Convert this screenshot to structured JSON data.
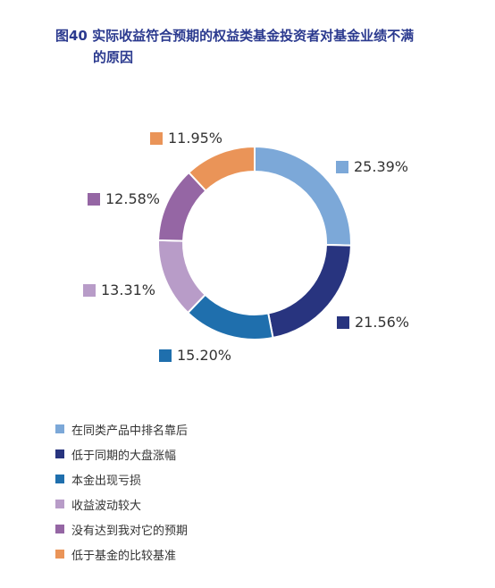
{
  "title": {
    "line1": "图40  实际收益符合预期的权益类基金投资者对基金业绩不满",
    "line2": "的原因"
  },
  "chart_data": {
    "type": "pie",
    "subtype": "donut",
    "title": "图40  实际收益符合预期的权益类基金投资者对基金业绩不满的原因",
    "legend_position": "bottom-left",
    "categories": [
      "在同类产品中排名靠后",
      "低于同期的大盘涨幅",
      "本金出现亏损",
      "收益波动较大",
      "没有达到我对它的预期",
      "低于基金的比较基准"
    ],
    "values": [
      25.39,
      21.56,
      15.2,
      13.31,
      12.58,
      11.95
    ],
    "labels": [
      "25.39%",
      "21.56%",
      "15.20%",
      "13.31%",
      "12.58%",
      "11.95%"
    ],
    "colors": [
      "#7ca8d8",
      "#28347f",
      "#1f6fad",
      "#b89cc8",
      "#9566a4",
      "#ea9458"
    ]
  }
}
